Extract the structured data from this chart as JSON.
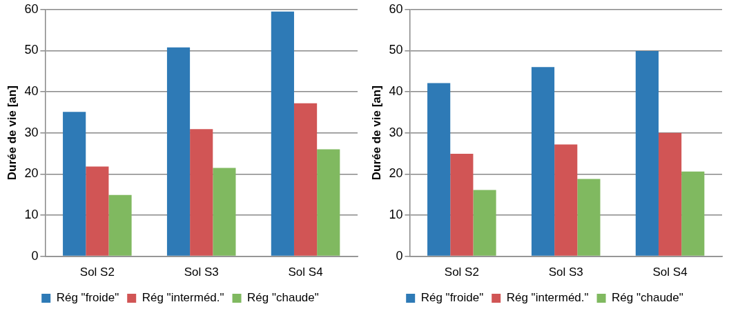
{
  "chart_data": [
    {
      "type": "bar",
      "ylabel": "Durée de vie [an]",
      "categories": [
        "Sol S2",
        "Sol S3",
        "Sol S4"
      ],
      "ylim": [
        0,
        60
      ],
      "yticks": [
        0,
        10,
        20,
        30,
        40,
        50,
        60
      ],
      "grid": "y",
      "legend": "bottom",
      "series": [
        {
          "name": "Rég \"froide\"",
          "color": "#2e7ab6",
          "values": [
            35.1,
            50.8,
            59.5
          ]
        },
        {
          "name": "Rég \"interméd.\"",
          "color": "#d15555",
          "values": [
            21.8,
            30.9,
            37.2
          ]
        },
        {
          "name": "Rég \"chaude\"",
          "color": "#80b960",
          "values": [
            14.9,
            21.5,
            26.0
          ]
        }
      ]
    },
    {
      "type": "bar",
      "ylabel": "Durée de vie [an]",
      "categories": [
        "Sol S2",
        "Sol S3",
        "Sol S4"
      ],
      "ylim": [
        0,
        60
      ],
      "yticks": [
        0,
        10,
        20,
        30,
        40,
        50,
        60
      ],
      "grid": "y",
      "legend": "bottom",
      "series": [
        {
          "name": "Rég \"froide\"",
          "color": "#2e7ab6",
          "values": [
            42.1,
            46.0,
            49.9
          ]
        },
        {
          "name": "Rég \"interméd.\"",
          "color": "#d15555",
          "values": [
            24.9,
            27.2,
            30.0
          ]
        },
        {
          "name": "Rég \"chaude\"",
          "color": "#80b960",
          "values": [
            16.1,
            18.8,
            20.6
          ]
        }
      ]
    }
  ]
}
